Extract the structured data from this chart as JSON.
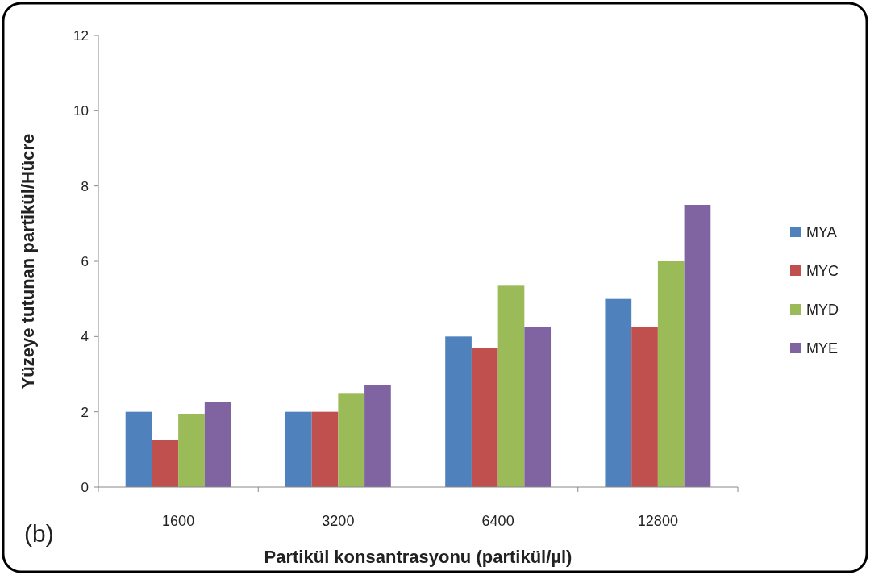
{
  "chart_data": {
    "type": "bar",
    "xlabel": "Partikül konsantrasyonu  (partikül/µl)",
    "ylabel": "Yüzeye tutunan partikül/Hücre",
    "categories": [
      "1600",
      "3200",
      "6400",
      "12800"
    ],
    "series": [
      {
        "name": "MYA",
        "color": "#4f81bd",
        "values": [
          2.0,
          2.0,
          4.0,
          5.0
        ]
      },
      {
        "name": "MYC",
        "color": "#c0504d",
        "values": [
          1.25,
          2.0,
          3.7,
          4.25
        ]
      },
      {
        "name": "MYD",
        "color": "#9bbb59",
        "values": [
          1.95,
          2.5,
          5.35,
          6.0
        ]
      },
      {
        "name": "MYE",
        "color": "#8064a2",
        "values": [
          2.25,
          2.7,
          4.25,
          7.5
        ]
      }
    ],
    "ylim": [
      0,
      12
    ],
    "yticks": [
      0,
      2,
      4,
      6,
      8,
      10,
      12
    ],
    "grid": false,
    "legend": "right",
    "annotations": [
      "(b)"
    ]
  }
}
